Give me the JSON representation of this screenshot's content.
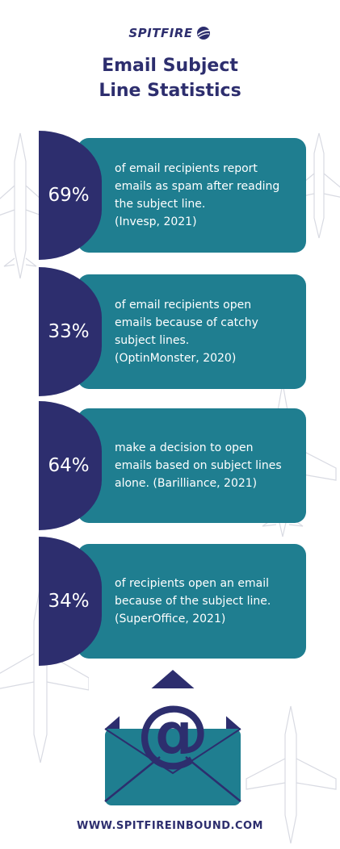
{
  "colors": {
    "navy": "#2d2e6e",
    "teal": "#1f7e90",
    "plane": "#b9bccb",
    "white": "#ffffff"
  },
  "brand": {
    "logo_text": "SPITFIRE",
    "logo_icon": "globe-wing-icon"
  },
  "title": "Email Subject\nLine Statistics",
  "stats": [
    {
      "percent": "69%",
      "text": "of email recipients report\nemails as spam after reading\nthe subject line.\n(Invesp, 2021)"
    },
    {
      "percent": "33%",
      "text": "of email recipients open\nemails because of catchy\nsubject lines.\n(OptinMonster, 2020)"
    },
    {
      "percent": "64%",
      "text": "make a decision to open\nemails based on subject lines\nalone. (Barilliance, 2021)"
    },
    {
      "percent": "34%",
      "text": "of recipients open an email\nbecause of the subject line.\n(SuperOffice, 2021)"
    }
  ],
  "illustration": {
    "icon": "envelope-at-icon",
    "symbol": "@"
  },
  "footer": "WWW.SPITFIREINBOUND.COM"
}
